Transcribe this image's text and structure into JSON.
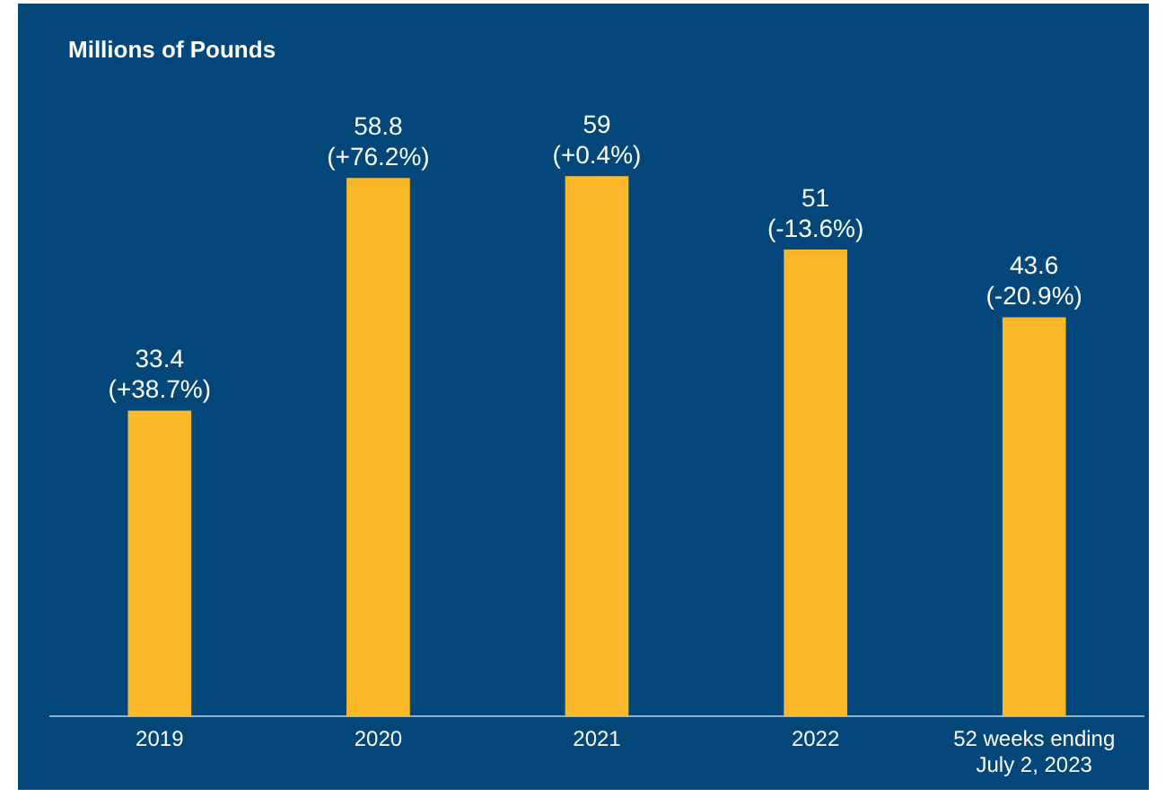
{
  "chart_data": {
    "type": "bar",
    "ylabel": "Millions of Pounds",
    "categories": [
      "2019",
      "2020",
      "2021",
      "2022",
      "52 weeks ending\nJuly 2, 2023"
    ],
    "values": [
      33.4,
      58.8,
      59,
      51,
      43.6
    ],
    "value_labels": [
      "33.4\n(+38.7%)",
      "58.8\n(+76.2%)",
      "59\n(+0.4%)",
      "51\n(-13.6%)",
      "43.6\n(-20.9%)"
    ],
    "color": "#fbb829",
    "grid": false,
    "legend": false
  }
}
